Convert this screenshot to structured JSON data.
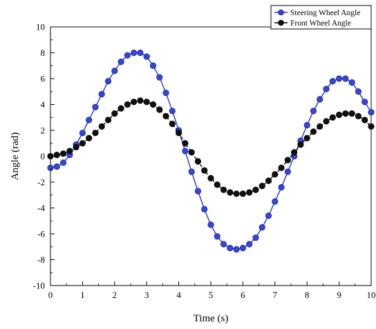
{
  "chart_data": {
    "type": "line",
    "xlabel": "Time (s)",
    "ylabel": "Angle (rad)",
    "xlim": [
      0,
      10
    ],
    "ylim": [
      -10,
      10
    ],
    "xticks": [
      0,
      1,
      2,
      3,
      4,
      5,
      6,
      7,
      8,
      9,
      10
    ],
    "yticks": [
      -10,
      -8,
      -6,
      -4,
      -2,
      0,
      2,
      4,
      6,
      8,
      10
    ],
    "grid": false,
    "legend_position": "top-right",
    "series": [
      {
        "name": "Steering Wheel Angle",
        "color": "#2233cc",
        "marker": "circle",
        "line_style": "solid",
        "x": [
          0,
          0.2,
          0.4,
          0.6,
          0.8,
          1.0,
          1.2,
          1.4,
          1.6,
          1.8,
          2.0,
          2.2,
          2.4,
          2.6,
          2.8,
          3.0,
          3.2,
          3.4,
          3.6,
          3.8,
          4.0,
          4.2,
          4.4,
          4.6,
          4.8,
          5.0,
          5.2,
          5.4,
          5.6,
          5.8,
          6.0,
          6.2,
          6.4,
          6.6,
          6.8,
          7.0,
          7.2,
          7.4,
          7.6,
          7.8,
          8.0,
          8.2,
          8.4,
          8.6,
          8.8,
          9.0,
          9.2,
          9.4,
          9.6,
          9.8,
          10.0
        ],
        "y": [
          -0.9,
          -0.8,
          -0.5,
          0.1,
          0.9,
          1.8,
          2.8,
          3.8,
          4.8,
          5.8,
          6.6,
          7.3,
          7.8,
          8.0,
          8.0,
          7.7,
          7.0,
          6.1,
          4.9,
          3.5,
          2.0,
          0.4,
          -1.2,
          -2.7,
          -4.1,
          -5.3,
          -6.2,
          -6.8,
          -7.1,
          -7.2,
          -7.1,
          -6.8,
          -6.3,
          -5.5,
          -4.6,
          -3.5,
          -2.4,
          -1.2,
          0.0,
          1.2,
          2.4,
          3.5,
          4.4,
          5.2,
          5.8,
          6.0,
          6.0,
          5.7,
          5.0,
          4.2,
          3.4
        ]
      },
      {
        "name": "Front Wheel Angle",
        "color": "#000000",
        "marker": "circle",
        "line_style": "dashed",
        "x": [
          0,
          0.2,
          0.4,
          0.6,
          0.8,
          1.0,
          1.2,
          1.4,
          1.6,
          1.8,
          2.0,
          2.2,
          2.4,
          2.6,
          2.8,
          3.0,
          3.2,
          3.4,
          3.6,
          3.8,
          4.0,
          4.2,
          4.4,
          4.6,
          4.8,
          5.0,
          5.2,
          5.4,
          5.6,
          5.8,
          6.0,
          6.2,
          6.4,
          6.6,
          6.8,
          7.0,
          7.2,
          7.4,
          7.6,
          7.8,
          8.0,
          8.2,
          8.4,
          8.6,
          8.8,
          9.0,
          9.2,
          9.4,
          9.6,
          9.8,
          10.0
        ],
        "y": [
          0.0,
          0.1,
          0.2,
          0.4,
          0.7,
          1.0,
          1.4,
          1.8,
          2.3,
          2.8,
          3.3,
          3.7,
          4.0,
          4.2,
          4.3,
          4.2,
          4.0,
          3.6,
          3.1,
          2.5,
          1.8,
          1.0,
          0.3,
          -0.4,
          -1.1,
          -1.7,
          -2.2,
          -2.6,
          -2.8,
          -2.9,
          -2.9,
          -2.8,
          -2.6,
          -2.3,
          -1.9,
          -1.4,
          -0.9,
          -0.3,
          0.3,
          0.9,
          1.4,
          1.9,
          2.3,
          2.7,
          3.0,
          3.2,
          3.3,
          3.3,
          3.1,
          2.8,
          2.3
        ]
      }
    ]
  }
}
